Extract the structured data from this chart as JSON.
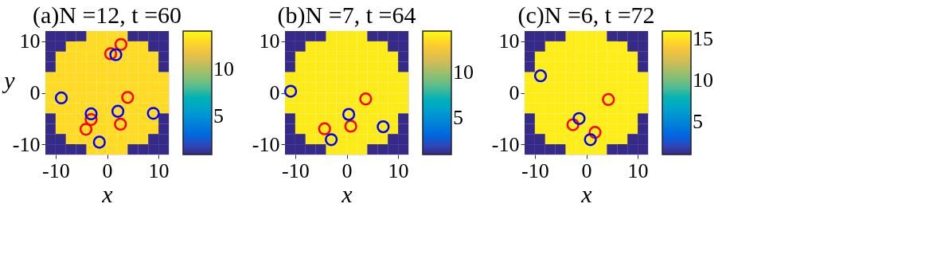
{
  "chart_data": [
    {
      "type": "heatmap",
      "title": "(a)N =12, t =60",
      "xlabel": "x",
      "ylabel": "y",
      "xlim": [
        -12,
        12
      ],
      "ylim": [
        -12,
        12
      ],
      "xticks": [
        -10,
        0,
        10
      ],
      "yticks": [
        -10,
        0,
        10
      ],
      "clim": [
        1,
        14
      ],
      "cticks": [
        5,
        10
      ],
      "grid": false,
      "marker": "circle",
      "cells": [
        [
          1,
          1,
          1,
          1,
          13,
          13,
          13,
          13,
          1,
          1,
          1,
          1
        ],
        [
          1,
          1,
          13,
          13,
          13,
          13,
          13,
          13,
          13,
          13,
          1,
          1
        ],
        [
          1,
          13,
          13,
          13,
          13,
          13,
          13,
          13,
          13,
          13,
          13,
          1
        ],
        [
          1,
          13,
          13,
          13,
          13,
          13,
          13,
          13,
          13,
          13,
          13,
          1
        ],
        [
          13,
          13,
          13,
          13,
          13,
          13,
          13,
          13,
          13,
          13,
          13,
          13
        ],
        [
          13,
          13,
          13,
          13,
          13,
          13,
          13,
          13,
          13,
          13,
          13,
          13
        ],
        [
          13,
          13,
          13,
          13,
          13,
          13,
          13,
          13,
          13,
          13,
          13,
          13
        ],
        [
          13,
          13,
          13,
          13,
          13,
          13,
          13,
          13,
          13,
          13,
          13,
          13
        ],
        [
          1,
          13,
          13,
          13,
          13,
          13,
          13,
          13,
          13,
          13,
          13,
          1
        ],
        [
          1,
          13,
          13,
          13,
          13,
          13,
          13,
          13,
          13,
          13,
          13,
          1
        ],
        [
          1,
          1,
          13,
          13,
          13,
          13,
          13,
          13,
          13,
          13,
          1,
          1
        ],
        [
          1,
          1,
          1,
          1,
          13,
          13,
          13,
          13,
          1,
          1,
          1,
          1
        ]
      ],
      "series": [
        {
          "type": "scatter",
          "color": "#ff0000",
          "x": [
            2.7,
            0.7,
            4.0,
            -3.1,
            -4.1,
            2.6
          ],
          "values": [
            9.4,
            7.6,
            -0.9,
            -5.2,
            -7.1,
            -6.1
          ]
        },
        {
          "type": "scatter",
          "color": "#0000ff",
          "x": [
            1.7,
            -8.9,
            -3.1,
            2.1,
            9.0,
            -1.5
          ],
          "values": [
            7.4,
            -1.0,
            -4.1,
            -3.6,
            -4.0,
            -9.6
          ]
        }
      ]
    },
    {
      "type": "heatmap",
      "title": "(b)N =7, t =64",
      "xlabel": "x",
      "xlim": [
        -12,
        12
      ],
      "ylim": [
        -12,
        12
      ],
      "xticks": [
        -10,
        0,
        10
      ],
      "yticks": [
        -10,
        0,
        10
      ],
      "clim": [
        1,
        14.5
      ],
      "cticks": [
        5,
        10
      ],
      "grid": false,
      "marker": "circle",
      "cells": [
        [
          1,
          1,
          1,
          1,
          14,
          14,
          14,
          14,
          1,
          1,
          1,
          1
        ],
        [
          1,
          1,
          14,
          14,
          14,
          14,
          14,
          14,
          14,
          14,
          1,
          1
        ],
        [
          1,
          14,
          14,
          14,
          14,
          14,
          14,
          14,
          14,
          14,
          14,
          1
        ],
        [
          1,
          14,
          14,
          14,
          14,
          14,
          14,
          14,
          14,
          14,
          14,
          1
        ],
        [
          14,
          14,
          14,
          14,
          14,
          14,
          14,
          14,
          14,
          14,
          14,
          14
        ],
        [
          14,
          14,
          14,
          14,
          14,
          14,
          14,
          14,
          14,
          14,
          14,
          14
        ],
        [
          14,
          14,
          14,
          14,
          14,
          14,
          14,
          14,
          14,
          14,
          14,
          14
        ],
        [
          14,
          14,
          14,
          14,
          14,
          14,
          14,
          14,
          14,
          14,
          14,
          14
        ],
        [
          1,
          14,
          14,
          14,
          14,
          14,
          14,
          14,
          14,
          14,
          14,
          1
        ],
        [
          1,
          14,
          14,
          14,
          14,
          14,
          14,
          14,
          14,
          14,
          14,
          1
        ],
        [
          1,
          1,
          14,
          14,
          14,
          14,
          14,
          14,
          14,
          14,
          1,
          1
        ],
        [
          1,
          1,
          1,
          1,
          14,
          14,
          14,
          14,
          1,
          1,
          1,
          1
        ]
      ],
      "series": [
        {
          "type": "scatter",
          "color": "#ff0000",
          "x": [
            3.7,
            -4.3,
            0.8
          ],
          "values": [
            -1.2,
            -7.0,
            -6.5
          ]
        },
        {
          "type": "scatter",
          "color": "#0000ff",
          "x": [
            -10.9,
            0.4,
            7.1,
            -3.0
          ],
          "values": [
            0.3,
            -4.2,
            -6.6,
            -9.1
          ]
        }
      ]
    },
    {
      "type": "heatmap",
      "title": "(c)N =6, t =72",
      "xlabel": "x",
      "xlim": [
        -12,
        12
      ],
      "ylim": [
        -12,
        12
      ],
      "xticks": [
        -10,
        0,
        10
      ],
      "yticks": [
        -10,
        0,
        10
      ],
      "clim": [
        1,
        16
      ],
      "cticks": [
        5,
        10,
        15
      ],
      "grid": false,
      "marker": "circle",
      "cells": [
        [
          1,
          1,
          1,
          1,
          15.5,
          15.5,
          15.5,
          15.5,
          1,
          1,
          1,
          1
        ],
        [
          1,
          1,
          15.5,
          15.5,
          15.5,
          15.5,
          15.5,
          15.5,
          15.5,
          15.5,
          1,
          1
        ],
        [
          1,
          15.5,
          15.5,
          15.5,
          15.5,
          15.5,
          15.5,
          15.5,
          15.5,
          15.5,
          15.5,
          1
        ],
        [
          1,
          15.5,
          15.5,
          15.5,
          15.5,
          15.5,
          15.5,
          15.5,
          15.5,
          15.5,
          15.5,
          1
        ],
        [
          15.5,
          15.5,
          15.5,
          15.5,
          15.5,
          15.5,
          15.5,
          15.5,
          15.5,
          15.5,
          15.5,
          15.5
        ],
        [
          15.5,
          15.5,
          15.5,
          15.5,
          15.5,
          15.5,
          15.5,
          15.5,
          15.5,
          15.5,
          15.5,
          15.5
        ],
        [
          15.5,
          15.5,
          15.5,
          15.5,
          15.5,
          15.5,
          15.5,
          15.5,
          15.5,
          15.5,
          15.5,
          15.5
        ],
        [
          15.5,
          15.5,
          15.5,
          15.5,
          15.5,
          15.5,
          15.5,
          15.5,
          15.5,
          15.5,
          15.5,
          15.5
        ],
        [
          1,
          15.5,
          15.5,
          15.5,
          15.5,
          15.5,
          15.5,
          15.5,
          15.5,
          15.5,
          15.5,
          1
        ],
        [
          1,
          15.5,
          15.5,
          15.5,
          15.5,
          15.5,
          15.5,
          15.5,
          15.5,
          15.5,
          15.5,
          1
        ],
        [
          1,
          1,
          15.5,
          15.5,
          15.5,
          15.5,
          15.5,
          15.5,
          15.5,
          15.5,
          1,
          1
        ],
        [
          1,
          1,
          1,
          1,
          15.5,
          15.5,
          15.5,
          15.5,
          1,
          1,
          1,
          1
        ]
      ],
      "series": [
        {
          "type": "scatter",
          "color": "#ff0000",
          "x": [
            4.3,
            -2.6,
            1.7
          ],
          "values": [
            -1.3,
            -6.2,
            -7.7
          ]
        },
        {
          "type": "scatter",
          "color": "#0000ff",
          "x": [
            -8.9,
            -1.4,
            0.8
          ],
          "values": [
            3.3,
            -5.0,
            -9.1
          ]
        }
      ]
    }
  ]
}
